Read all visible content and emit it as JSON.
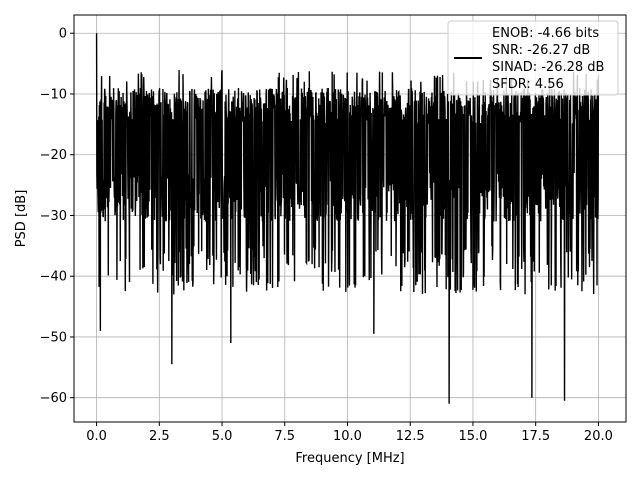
{
  "chart_data": {
    "type": "line",
    "title": "",
    "xlabel": "Frequency [MHz]",
    "ylabel": "PSD [dB]",
    "xlim": [
      -0.9,
      21.1
    ],
    "ylim": [
      -64.0,
      3.0
    ],
    "xticks": [
      0.0,
      2.5,
      5.0,
      7.5,
      10.0,
      12.5,
      15.0,
      17.5,
      20.0
    ],
    "xtick_labels": [
      "0.0",
      "2.5",
      "5.0",
      "7.5",
      "10.0",
      "12.5",
      "15.0",
      "17.5",
      "20.0"
    ],
    "yticks": [
      0,
      -10,
      -20,
      -30,
      -40,
      -50,
      -60
    ],
    "ytick_labels": [
      "0",
      "−10",
      "−20",
      "−30",
      "−40",
      "−50",
      "−60"
    ],
    "grid": true,
    "legend_position": "top-right",
    "legend_lines": [
      "ENOB: -4.66 bits",
      "SNR: -26.27 dB",
      "SINAD: -26.28 dB",
      "SFDR: 4.56"
    ],
    "series": [
      {
        "color": "#000000",
        "noise_band_db": [
          -31,
          -9
        ],
        "x_range_mhz": [
          0.0,
          20.0
        ],
        "peaks": [
          {
            "x": 0.0,
            "y": 0.0
          },
          {
            "x": 0.05,
            "y": -26.0
          },
          {
            "x": 0.15,
            "y": -49.0
          },
          {
            "x": 3.0,
            "y": -54.5
          },
          {
            "x": 5.35,
            "y": -51.0
          },
          {
            "x": 11.05,
            "y": -49.5
          },
          {
            "x": 14.05,
            "y": -61.0
          },
          {
            "x": 17.35,
            "y": -60.0
          },
          {
            "x": 18.65,
            "y": -60.5
          }
        ]
      }
    ]
  }
}
